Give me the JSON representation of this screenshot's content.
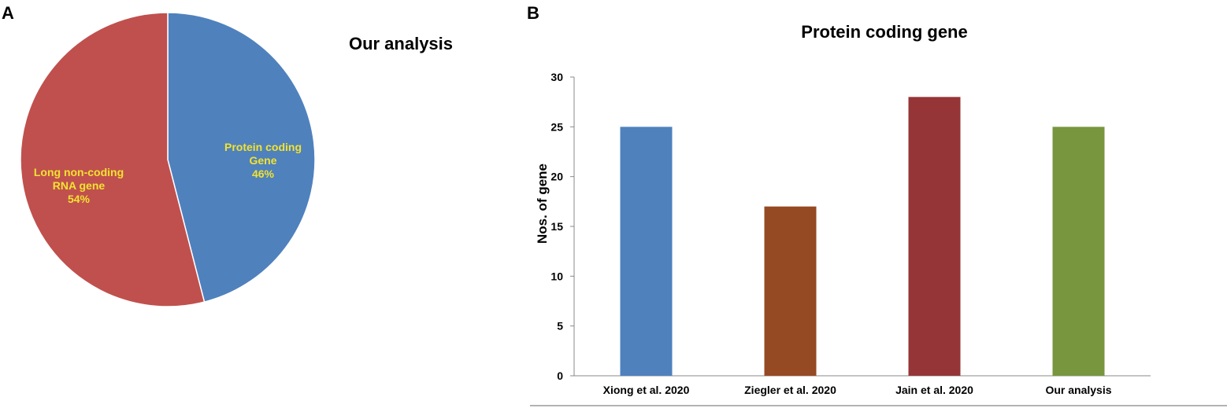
{
  "panels": {
    "a_label": "A",
    "b_label": "B"
  },
  "chart_data": [
    {
      "type": "pie",
      "title": "Our analysis",
      "slices": [
        {
          "label_lines": [
            "Protein coding",
            "Gene",
            "46%"
          ],
          "value": 46,
          "color": "#4f81bd"
        },
        {
          "label_lines": [
            "Long non-coding",
            "RNA gene",
            "54%"
          ],
          "value": 54,
          "color": "#c0504d"
        }
      ],
      "label_color": "#f2e230"
    },
    {
      "type": "bar",
      "title": "Protein coding gene",
      "categories": [
        "Xiong  et al. 2020",
        "Ziegler et al.  2020",
        "Jain et al.  2020",
        "Our analysis"
      ],
      "values": [
        25,
        17,
        28,
        25
      ],
      "colors": [
        "#4f81bd",
        "#954a23",
        "#953537",
        "#77963e"
      ],
      "xlabel": "",
      "ylabel": "Nos. of gene",
      "ylim": [
        0,
        30
      ],
      "yticks": [
        0,
        5,
        10,
        15,
        20,
        25,
        30
      ],
      "grid": false
    }
  ]
}
